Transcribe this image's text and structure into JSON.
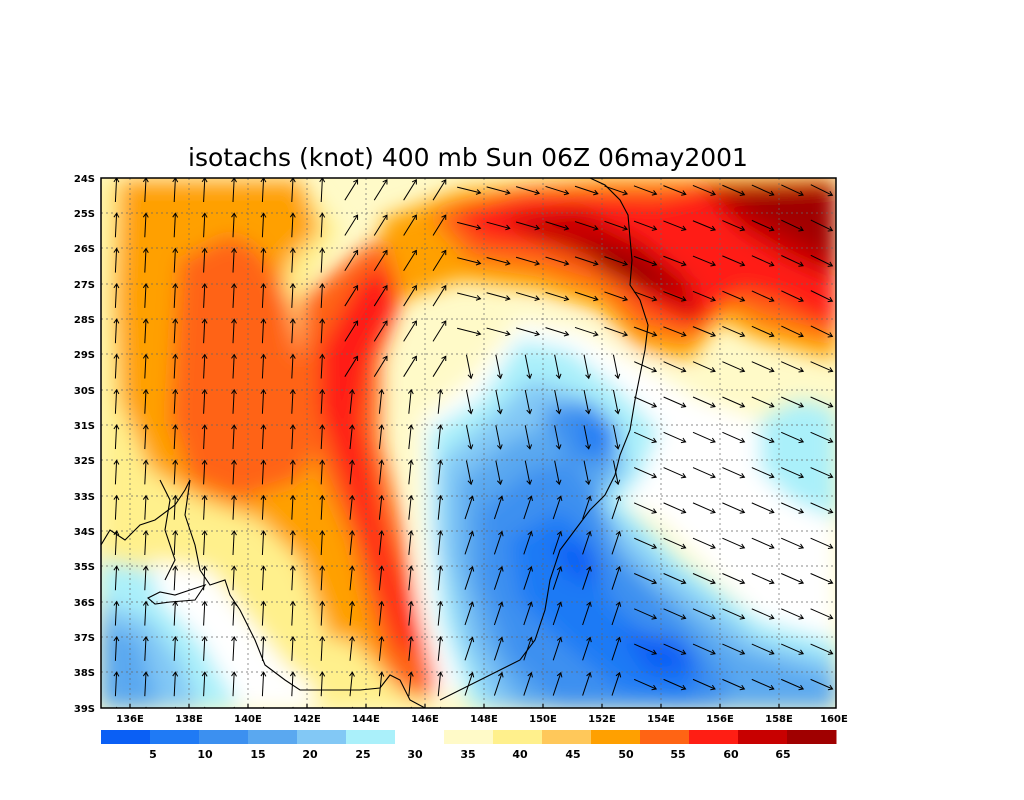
{
  "title": "isotachs (knot) 400 mb Sun 06Z 06may2001",
  "axes": {
    "lon_ticks": [
      "136E",
      "138E",
      "140E",
      "142E",
      "144E",
      "146E",
      "148E",
      "150E",
      "152E",
      "154E",
      "156E",
      "158E",
      "160E"
    ],
    "lat_ticks": [
      "24S",
      "25S",
      "26S",
      "27S",
      "28S",
      "29S",
      "30S",
      "31S",
      "32S",
      "33S",
      "34S",
      "35S",
      "36S",
      "37S",
      "38S",
      "39S"
    ]
  },
  "colorbar": {
    "colors": [
      "#0a5ff5",
      "#1f7af5",
      "#3c90f0",
      "#5aa8f0",
      "#82c8f5",
      "#aaf0fa",
      "#ffffff",
      "#fffac8",
      "#fff08c",
      "#ffc85a",
      "#ffa000",
      "#ff6414",
      "#ff1e14",
      "#c80000",
      "#a00000"
    ],
    "labels": [
      "5",
      "10",
      "15",
      "20",
      "25",
      "30",
      "35",
      "40",
      "45",
      "50",
      "55",
      "60",
      "65"
    ]
  },
  "chart_data": {
    "type": "heatmap",
    "title": "isotachs (knot) 400 mb Sun 06Z 06may2001",
    "x_range_deg_east": [
      135,
      160
    ],
    "y_range_deg_south": [
      24,
      39
    ],
    "grid": true,
    "contour_levels": [
      5,
      10,
      15,
      20,
      25,
      30,
      35,
      40,
      45,
      50,
      55,
      60,
      65
    ],
    "features": [
      {
        "lon": 137.5,
        "lat": 30.0,
        "speed": 44
      },
      {
        "lon": 140.0,
        "lat": 28.5,
        "speed": 52
      },
      {
        "lon": 143.5,
        "lat": 33.5,
        "speed": 58
      },
      {
        "lon": 145.5,
        "lat": 37.5,
        "speed": 55
      },
      {
        "lon": 150.5,
        "lat": 25.5,
        "speed": 58
      },
      {
        "lon": 153.5,
        "lat": 26.8,
        "speed": 65
      },
      {
        "lon": 158.5,
        "lat": 25.5,
        "speed": 65
      },
      {
        "lon": 151.5,
        "lat": 31.5,
        "speed": 8
      },
      {
        "lon": 150.8,
        "lat": 34.8,
        "speed": 4
      },
      {
        "lon": 154.0,
        "lat": 37.6,
        "speed": 3
      },
      {
        "lon": 159.0,
        "lat": 32.0,
        "speed": 22
      },
      {
        "lon": 135.8,
        "lat": 37.5,
        "speed": 20
      },
      {
        "lon": 150.0,
        "lat": 30.5,
        "speed": 28
      }
    ]
  }
}
